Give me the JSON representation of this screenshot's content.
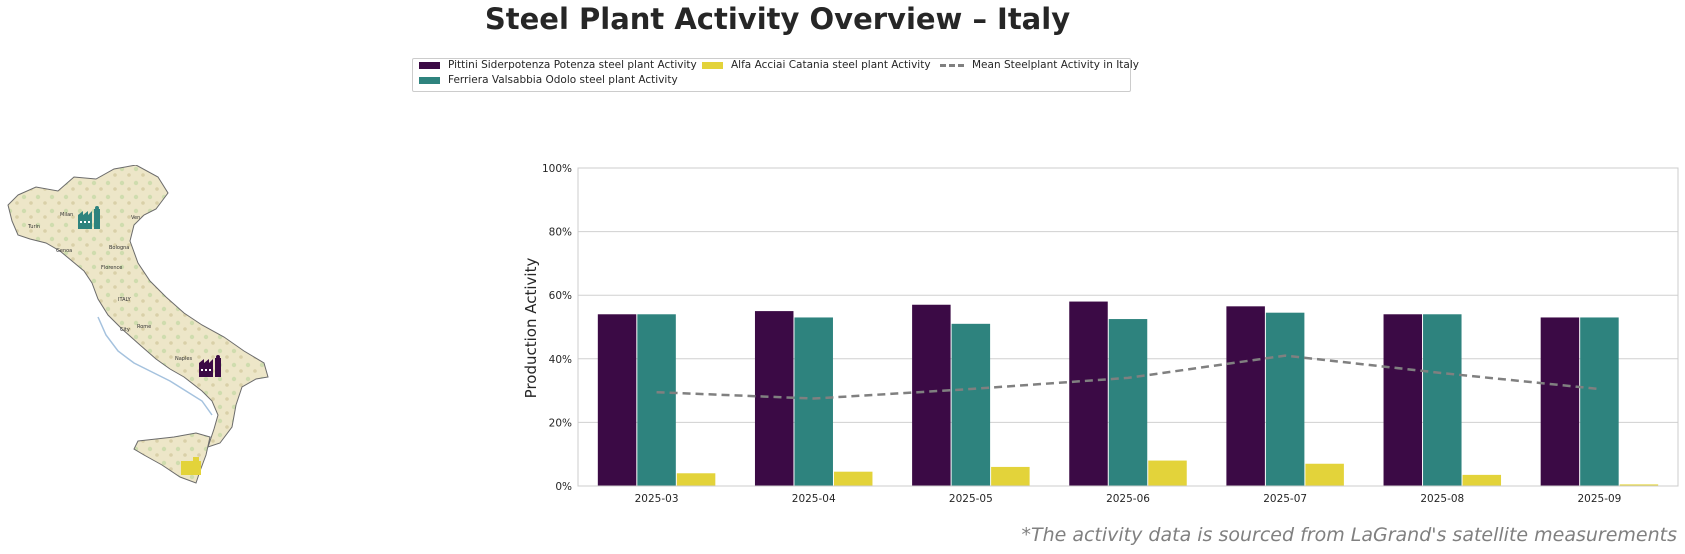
{
  "title": "Steel Plant Activity Overview – Italy",
  "footnote": "*The activity data is sourced from LaGrand's satellite measurements",
  "legend": [
    {
      "label": "Pittini Siderpotenza Potenza steel plant Activity",
      "color": "#3b0a45"
    },
    {
      "label": "Ferriera Valsabbia Odolo steel plant Activity",
      "color": "#2e837e"
    },
    {
      "label": "Alfa Acciai Catania steel plant Activity",
      "color": "#e3d33a"
    },
    {
      "label": "Mean Steelplant Activity in Italy",
      "color": "#808080"
    }
  ],
  "map": {
    "cities": [
      "Milan",
      "Turin",
      "Genoa",
      "Bologna",
      "Florence",
      "ITALY",
      "Rome",
      "City",
      "Naples",
      "Ven"
    ],
    "plant_icons": [
      "factory-teal",
      "factory-purple",
      "factory-yellow"
    ]
  },
  "chart_data": {
    "type": "bar",
    "categories": [
      "2025-03",
      "2025-04",
      "2025-05",
      "2025-06",
      "2025-07",
      "2025-08",
      "2025-09"
    ],
    "series": [
      {
        "name": "Pittini Siderpotenza Potenza steel plant Activity",
        "color": "#3b0a45",
        "values": [
          54,
          55,
          57,
          58,
          56.5,
          54,
          53
        ]
      },
      {
        "name": "Ferriera Valsabbia Odolo steel plant Activity",
        "color": "#2e837e",
        "values": [
          54,
          53,
          51,
          52.5,
          54.5,
          54,
          53
        ]
      },
      {
        "name": "Alfa Acciai Catania steel plant Activity",
        "color": "#e3d33a",
        "values": [
          4,
          4.5,
          6,
          8,
          7,
          3.5,
          0.5
        ]
      }
    ],
    "line": {
      "name": "Mean Steelplant Activity in Italy",
      "color": "#808080",
      "style": "dashed",
      "values": [
        29.5,
        27.5,
        30.5,
        34,
        41,
        35.5,
        30.5
      ]
    },
    "ylabel": "Production Activity",
    "xlabel": "",
    "ylim": [
      0,
      100
    ],
    "yticks": [
      "0%",
      "20%",
      "40%",
      "60%",
      "80%",
      "100%"
    ],
    "grid": true
  }
}
